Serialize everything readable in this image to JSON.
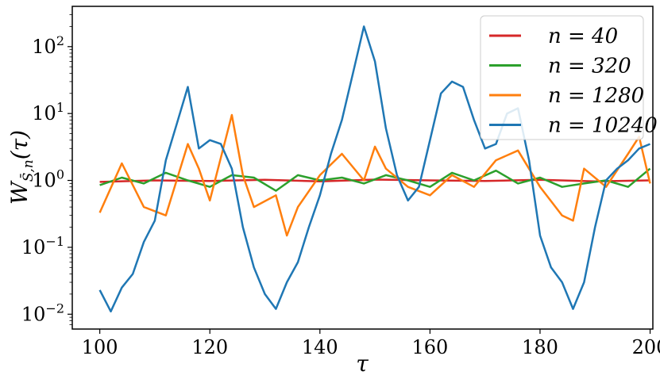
{
  "chart_data": {
    "type": "line",
    "title": "",
    "xlabel": "τ",
    "ylabel": "W",
    "ylabel_sub": "S̄,n",
    "ylabel_arg": "(τ)",
    "yscale": "log",
    "xlim": [
      95,
      200.5
    ],
    "ylim": [
      0.006,
      400
    ],
    "xticks": [
      100,
      120,
      140,
      160,
      180,
      200
    ],
    "yticks": [
      {
        "value": 0.01,
        "base": "10",
        "exp": "−2"
      },
      {
        "value": 0.1,
        "base": "10",
        "exp": "−1"
      },
      {
        "value": 1,
        "base": "10",
        "exp": "0"
      },
      {
        "value": 10,
        "base": "10",
        "exp": "1"
      },
      {
        "value": 100,
        "base": "10",
        "exp": "2"
      }
    ],
    "grid": false,
    "legend_position": "top-right",
    "series": [
      {
        "name": "n = 40",
        "color": "#d62728",
        "x": [
          100,
          110,
          120,
          130,
          140,
          150,
          160,
          170,
          180,
          190,
          200
        ],
        "y": [
          0.95,
          1.0,
          0.98,
          1.02,
          0.97,
          1.03,
          1.0,
          0.98,
          1.02,
          0.97,
          1.0
        ]
      },
      {
        "name": "n = 320",
        "color": "#2ca02c",
        "x": [
          100,
          104,
          108,
          112,
          116,
          120,
          124,
          128,
          132,
          136,
          140,
          144,
          148,
          152,
          156,
          160,
          164,
          168,
          172,
          176,
          180,
          184,
          188,
          192,
          196,
          200
        ],
        "y": [
          0.85,
          1.1,
          0.9,
          1.3,
          1.0,
          0.8,
          1.2,
          1.1,
          0.7,
          1.2,
          1.0,
          1.1,
          0.9,
          1.2,
          1.0,
          0.8,
          1.3,
          1.0,
          1.4,
          0.9,
          1.1,
          0.8,
          0.9,
          1.0,
          0.8,
          1.5
        ]
      },
      {
        "name": "n = 1280",
        "color": "#ff7f0e",
        "x": [
          100,
          104,
          108,
          112,
          116,
          118,
          120,
          124,
          126,
          128,
          132,
          134,
          136,
          140,
          144,
          148,
          150,
          152,
          156,
          160,
          164,
          168,
          172,
          176,
          180,
          184,
          186,
          188,
          192,
          196,
          198,
          200
        ],
        "y": [
          0.33,
          1.8,
          0.4,
          0.3,
          3.5,
          1.5,
          0.5,
          9.5,
          1.2,
          0.4,
          0.6,
          0.15,
          0.4,
          1.2,
          2.5,
          1.0,
          3.2,
          1.5,
          0.8,
          0.6,
          1.2,
          0.8,
          2.0,
          2.8,
          0.8,
          0.3,
          0.25,
          1.5,
          0.8,
          2.5,
          4.5,
          0.9
        ]
      },
      {
        "name": "n = 10240",
        "color": "#1f77b4",
        "x": [
          100,
          102,
          104,
          106,
          108,
          110,
          112,
          114,
          116,
          118,
          120,
          122,
          124,
          126,
          128,
          130,
          132,
          134,
          136,
          138,
          140,
          142,
          144,
          146,
          148,
          150,
          152,
          154,
          156,
          158,
          160,
          162,
          164,
          166,
          168,
          170,
          172,
          174,
          176,
          178,
          180,
          182,
          184,
          186,
          188,
          190,
          192,
          194,
          196,
          198,
          200
        ],
        "y": [
          0.023,
          0.011,
          0.025,
          0.04,
          0.12,
          0.25,
          2.0,
          7.0,
          25,
          3.0,
          4.0,
          3.5,
          1.5,
          0.2,
          0.05,
          0.02,
          0.012,
          0.03,
          0.06,
          0.2,
          0.6,
          2.5,
          8,
          40,
          200,
          60,
          6,
          1.2,
          0.5,
          0.8,
          4,
          20,
          30,
          25,
          8,
          3,
          3.5,
          10,
          12,
          2.0,
          0.15,
          0.05,
          0.03,
          0.012,
          0.03,
          0.2,
          1.0,
          1.5,
          2.0,
          3.0,
          3.5
        ]
      }
    ]
  }
}
